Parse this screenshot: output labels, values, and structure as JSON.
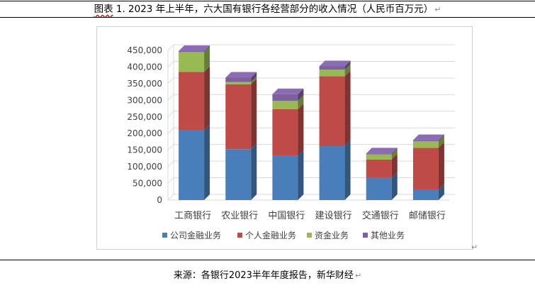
{
  "caption": {
    "label": "图表",
    "text": " 1.  2023 年上半年，六大国有银行各经营部分的收入情况（人民币百万元）",
    "mark": "↵"
  },
  "source": {
    "text": "来源：各银行2023半年年度报告，新华财经",
    "mark": "↵"
  },
  "end_mark": "↵",
  "colors": {
    "corporate": "#4a7ebb",
    "personal": "#be4b48",
    "treasury": "#98b954",
    "other": "#7d60a0",
    "grid": "#d9d9d9",
    "axis_text": "#404040"
  },
  "chart_data": {
    "type": "bar",
    "stacked": true,
    "three_d": true,
    "title": "",
    "xlabel": "",
    "ylabel": "",
    "ylim": [
      0,
      450000
    ],
    "y_ticks": [
      0,
      50000,
      100000,
      150000,
      200000,
      250000,
      300000,
      350000,
      400000,
      450000
    ],
    "y_tick_labels": [
      "0",
      "50,000",
      "100,000",
      "150,000",
      "200,000",
      "250,000",
      "300,000",
      "350,000",
      "400,000",
      "450,000"
    ],
    "grid": true,
    "legend_position": "bottom",
    "categories": [
      "工商银行",
      "农业银行",
      "中国银行",
      "建设银行",
      "交通银行",
      "邮储银行"
    ],
    "series": [
      {
        "name": "公司金融业务",
        "key": "corporate",
        "values": [
          210000,
          153000,
          133000,
          162000,
          67000,
          30000
        ]
      },
      {
        "name": "个人金融业务",
        "key": "personal",
        "values": [
          175000,
          195000,
          140000,
          210000,
          55000,
          127000
        ]
      },
      {
        "name": "资金业务",
        "key": "treasury",
        "values": [
          60000,
          7000,
          25000,
          20000,
          15000,
          20000
        ]
      },
      {
        "name": "其他业务",
        "key": "other",
        "values": [
          3000,
          13000,
          20000,
          10000,
          3000,
          3000
        ]
      }
    ]
  }
}
